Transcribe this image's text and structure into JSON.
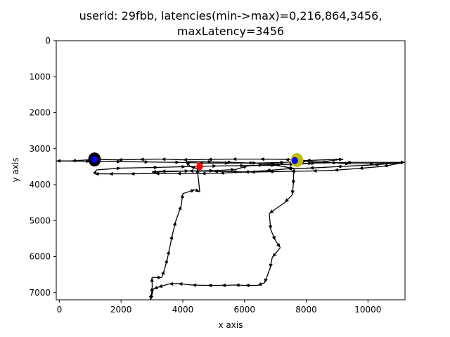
{
  "chart_data": {
    "type": "line",
    "title_line1": "userid: 29fbb, latencies(min->max)=0,216,864,3456,",
    "title_line2": "maxLatency=3456",
    "xlabel": "x axis",
    "ylabel": "y axis",
    "xlim": [
      -100,
      11200
    ],
    "ylim": [
      7200,
      0
    ],
    "y_inverted": true,
    "x_ticks": [
      0,
      2000,
      4000,
      6000,
      8000,
      10000
    ],
    "x_tick_labels": [
      "0",
      "2000",
      "4000",
      "6000",
      "8000",
      "10000"
    ],
    "y_ticks": [
      0,
      1000,
      2000,
      3000,
      4000,
      5000,
      6000,
      7000
    ],
    "y_tick_labels": [
      "0",
      "1000",
      "2000",
      "3000",
      "4000",
      "5000",
      "6000",
      "7000"
    ],
    "grid": false,
    "path_color": "#000000",
    "path": [
      [
        2940,
        7200
      ],
      [
        2990,
        7020
      ],
      [
        3010,
        6840
      ],
      [
        3000,
        6580
      ],
      [
        3320,
        6580
      ],
      [
        3400,
        6380
      ],
      [
        3500,
        6060
      ],
      [
        3560,
        5820
      ],
      [
        3660,
        5400
      ],
      [
        3770,
        5020
      ],
      [
        3950,
        4580
      ],
      [
        4000,
        4250
      ],
      [
        4400,
        4140
      ],
      [
        4550,
        4200
      ],
      [
        4470,
        3550
      ],
      [
        4250,
        3500
      ],
      [
        4100,
        3360
      ],
      [
        4950,
        3370
      ],
      [
        5600,
        3380
      ],
      [
        6300,
        3400
      ],
      [
        7000,
        3420
      ],
      [
        7600,
        3440
      ],
      [
        8300,
        3400
      ],
      [
        9000,
        3390
      ],
      [
        9500,
        3380
      ],
      [
        11200,
        3380
      ],
      [
        10500,
        3490
      ],
      [
        9700,
        3550
      ],
      [
        8900,
        3600
      ],
      [
        8200,
        3620
      ],
      [
        7500,
        3630
      ],
      [
        6800,
        3640
      ],
      [
        6200,
        3650
      ],
      [
        5600,
        3640
      ],
      [
        5000,
        3630
      ],
      [
        4200,
        3620
      ],
      [
        3300,
        3630
      ],
      [
        3000,
        3650
      ],
      [
        4200,
        3620
      ],
      [
        5000,
        3610
      ],
      [
        5700,
        3580
      ],
      [
        6100,
        3480
      ],
      [
        6600,
        3450
      ],
      [
        7200,
        3440
      ],
      [
        7600,
        3430
      ],
      [
        8200,
        3400
      ],
      [
        9200,
        3290
      ],
      [
        8000,
        3330
      ],
      [
        7300,
        3300
      ],
      [
        6500,
        3290
      ],
      [
        5600,
        3290
      ],
      [
        4800,
        3300
      ],
      [
        4000,
        3310
      ],
      [
        3300,
        3290
      ],
      [
        2600,
        3300
      ],
      [
        1900,
        3310
      ],
      [
        1140,
        3300
      ],
      [
        400,
        3340
      ],
      [
        -100,
        3340
      ],
      [
        1000,
        3350
      ],
      [
        2000,
        3360
      ],
      [
        2900,
        3370
      ],
      [
        3900,
        3380
      ],
      [
        4700,
        3400
      ],
      [
        5500,
        3400
      ],
      [
        6400,
        3400
      ],
      [
        7300,
        3380
      ],
      [
        8000,
        3350
      ],
      [
        8700,
        3380
      ],
      [
        9400,
        3420
      ],
      [
        10200,
        3420
      ],
      [
        11200,
        3380
      ],
      [
        10200,
        3450
      ],
      [
        9000,
        3500
      ],
      [
        8100,
        3540
      ],
      [
        7400,
        3560
      ],
      [
        6700,
        3610
      ],
      [
        6000,
        3650
      ],
      [
        5200,
        3680
      ],
      [
        4600,
        3690
      ],
      [
        3800,
        3690
      ],
      [
        3100,
        3690
      ],
      [
        2300,
        3700
      ],
      [
        1600,
        3700
      ],
      [
        1140,
        3700
      ],
      [
        1200,
        3590
      ],
      [
        2000,
        3540
      ],
      [
        3200,
        3520
      ],
      [
        4100,
        3500
      ],
      [
        5100,
        3480
      ],
      [
        6000,
        3470
      ],
      [
        7000,
        3460
      ],
      [
        7600,
        3550
      ],
      [
        7580,
        4000
      ],
      [
        7550,
        4280
      ],
      [
        7300,
        4500
      ],
      [
        6800,
        4800
      ],
      [
        6850,
        5250
      ],
      [
        7000,
        5550
      ],
      [
        7160,
        5750
      ],
      [
        6900,
        6020
      ],
      [
        6830,
        6320
      ],
      [
        6650,
        6730
      ],
      [
        6420,
        6800
      ],
      [
        6020,
        6800
      ],
      [
        5700,
        6790
      ],
      [
        5250,
        6800
      ],
      [
        4800,
        6800
      ],
      [
        4300,
        6790
      ],
      [
        3850,
        6750
      ],
      [
        3550,
        6760
      ],
      [
        3200,
        6850
      ],
      [
        3050,
        6900
      ],
      [
        2960,
        7200
      ]
    ],
    "markers": [
      {
        "x": 1140,
        "y": 3300,
        "color": "#000000",
        "inner_color": "#0000ff"
      },
      {
        "x": 7700,
        "y": 3320,
        "color": "#bfbf00",
        "inner_color": null
      },
      {
        "x": 7630,
        "y": 3330,
        "color": "#0000ff",
        "inner_color": null
      },
      {
        "x": 4550,
        "y": 3490,
        "color": "#ff0000",
        "inner_color": null
      }
    ]
  }
}
